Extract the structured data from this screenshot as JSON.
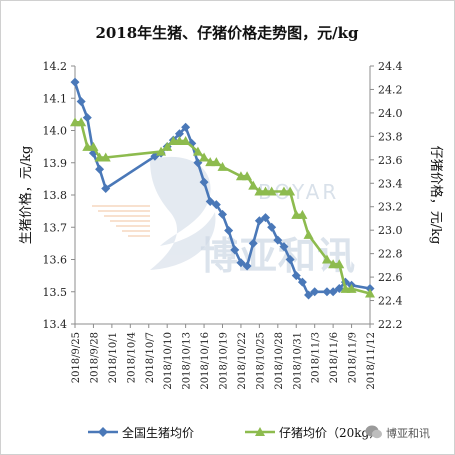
{
  "chart_data": {
    "type": "line",
    "title": "2018年生猪、仔猪价格走势图，元/kg",
    "ylabel_left": "生猪价格，元/kg",
    "ylabel_right": "仔猪价格，元/kg",
    "y_left_range": [
      13.4,
      14.2
    ],
    "y_left_ticks": [
      "13.4",
      "13.5",
      "13.6",
      "13.7",
      "13.8",
      "13.9",
      "14.0",
      "14.1",
      "14.2"
    ],
    "y_right_range": [
      22.2,
      24.4
    ],
    "y_right_ticks": [
      "22.2",
      "22.4",
      "22.6",
      "22.8",
      "23.0",
      "23.2",
      "23.4",
      "23.6",
      "23.8",
      "24.0",
      "24.2",
      "24.4"
    ],
    "x_range": [
      "2018/9/25",
      "2018/11/12"
    ],
    "x_ticks": [
      "2018/9/25",
      "2018/9/28",
      "2018/10/1",
      "2018/10/4",
      "2018/10/7",
      "2018/10/10",
      "2018/10/13",
      "2018/10/16",
      "2018/10/19",
      "2018/10/22",
      "2018/10/25",
      "2018/10/28",
      "2018/10/31",
      "2018/11/3",
      "2018/11/6",
      "2018/11/9",
      "2018/11/12"
    ],
    "grid": false,
    "legend_position": "bottom",
    "series": [
      {
        "name": "全国生猪均价",
        "axis": "left",
        "color": "#4a78b8",
        "marker": "diamond",
        "points": [
          [
            "2018/9/25",
            14.15
          ],
          [
            "2018/9/26",
            14.09
          ],
          [
            "2018/9/27",
            14.04
          ],
          [
            "2018/9/28",
            13.93
          ],
          [
            "2018/9/29",
            13.88
          ],
          [
            "2018/9/30",
            13.82
          ],
          [
            "2018/10/8",
            13.92
          ],
          [
            "2018/10/9",
            13.93
          ],
          [
            "2018/10/10",
            13.95
          ],
          [
            "2018/10/11",
            13.97
          ],
          [
            "2018/10/12",
            13.99
          ],
          [
            "2018/10/13",
            14.01
          ],
          [
            "2018/10/14",
            13.96
          ],
          [
            "2018/10/15",
            13.9
          ],
          [
            "2018/10/16",
            13.84
          ],
          [
            "2018/10/17",
            13.78
          ],
          [
            "2018/10/18",
            13.77
          ],
          [
            "2018/10/19",
            13.74
          ],
          [
            "2018/10/20",
            13.69
          ],
          [
            "2018/10/21",
            13.63
          ],
          [
            "2018/10/22",
            13.59
          ],
          [
            "2018/10/23",
            13.58
          ],
          [
            "2018/10/24",
            13.65
          ],
          [
            "2018/10/25",
            13.72
          ],
          [
            "2018/10/26",
            13.73
          ],
          [
            "2018/10/27",
            13.7
          ],
          [
            "2018/10/28",
            13.66
          ],
          [
            "2018/10/29",
            13.64
          ],
          [
            "2018/10/30",
            13.6
          ],
          [
            "2018/10/31",
            13.55
          ],
          [
            "2018/11/1",
            13.53
          ],
          [
            "2018/11/2",
            13.49
          ],
          [
            "2018/11/3",
            13.5
          ],
          [
            "2018/11/5",
            13.5
          ],
          [
            "2018/11/6",
            13.5
          ],
          [
            "2018/11/7",
            13.51
          ],
          [
            "2018/11/8",
            13.53
          ],
          [
            "2018/11/9",
            13.52
          ],
          [
            "2018/11/12",
            13.51
          ]
        ]
      },
      {
        "name": "仔猪均价（20kg）",
        "axis": "right",
        "color": "#8dbb4e",
        "marker": "triangle",
        "points": [
          [
            "2018/9/25",
            23.92
          ],
          [
            "2018/9/26",
            23.92
          ],
          [
            "2018/9/27",
            23.71
          ],
          [
            "2018/9/28",
            23.71
          ],
          [
            "2018/9/29",
            23.62
          ],
          [
            "2018/9/30",
            23.62
          ],
          [
            "2018/10/9",
            23.67
          ],
          [
            "2018/10/10",
            23.71
          ],
          [
            "2018/10/11",
            23.76
          ],
          [
            "2018/10/12",
            23.76
          ],
          [
            "2018/10/13",
            23.76
          ],
          [
            "2018/10/15",
            23.67
          ],
          [
            "2018/10/16",
            23.62
          ],
          [
            "2018/10/17",
            23.58
          ],
          [
            "2018/10/18",
            23.58
          ],
          [
            "2018/10/19",
            23.54
          ],
          [
            "2018/10/22",
            23.46
          ],
          [
            "2018/10/23",
            23.46
          ],
          [
            "2018/10/24",
            23.38
          ],
          [
            "2018/10/25",
            23.33
          ],
          [
            "2018/10/26",
            23.33
          ],
          [
            "2018/10/27",
            23.33
          ],
          [
            "2018/10/29",
            23.33
          ],
          [
            "2018/10/30",
            23.33
          ],
          [
            "2018/10/31",
            23.13
          ],
          [
            "2018/11/1",
            23.13
          ],
          [
            "2018/11/2",
            22.96
          ],
          [
            "2018/11/5",
            22.75
          ],
          [
            "2018/11/6",
            22.71
          ],
          [
            "2018/11/7",
            22.71
          ],
          [
            "2018/11/8",
            22.5
          ],
          [
            "2018/11/9",
            22.5
          ],
          [
            "2018/11/12",
            22.46
          ]
        ]
      }
    ]
  },
  "watermark": {
    "text_en": "BOYAR",
    "text_cn": "博亚和讯"
  },
  "footer": {
    "account_name": "博亚和讯"
  }
}
